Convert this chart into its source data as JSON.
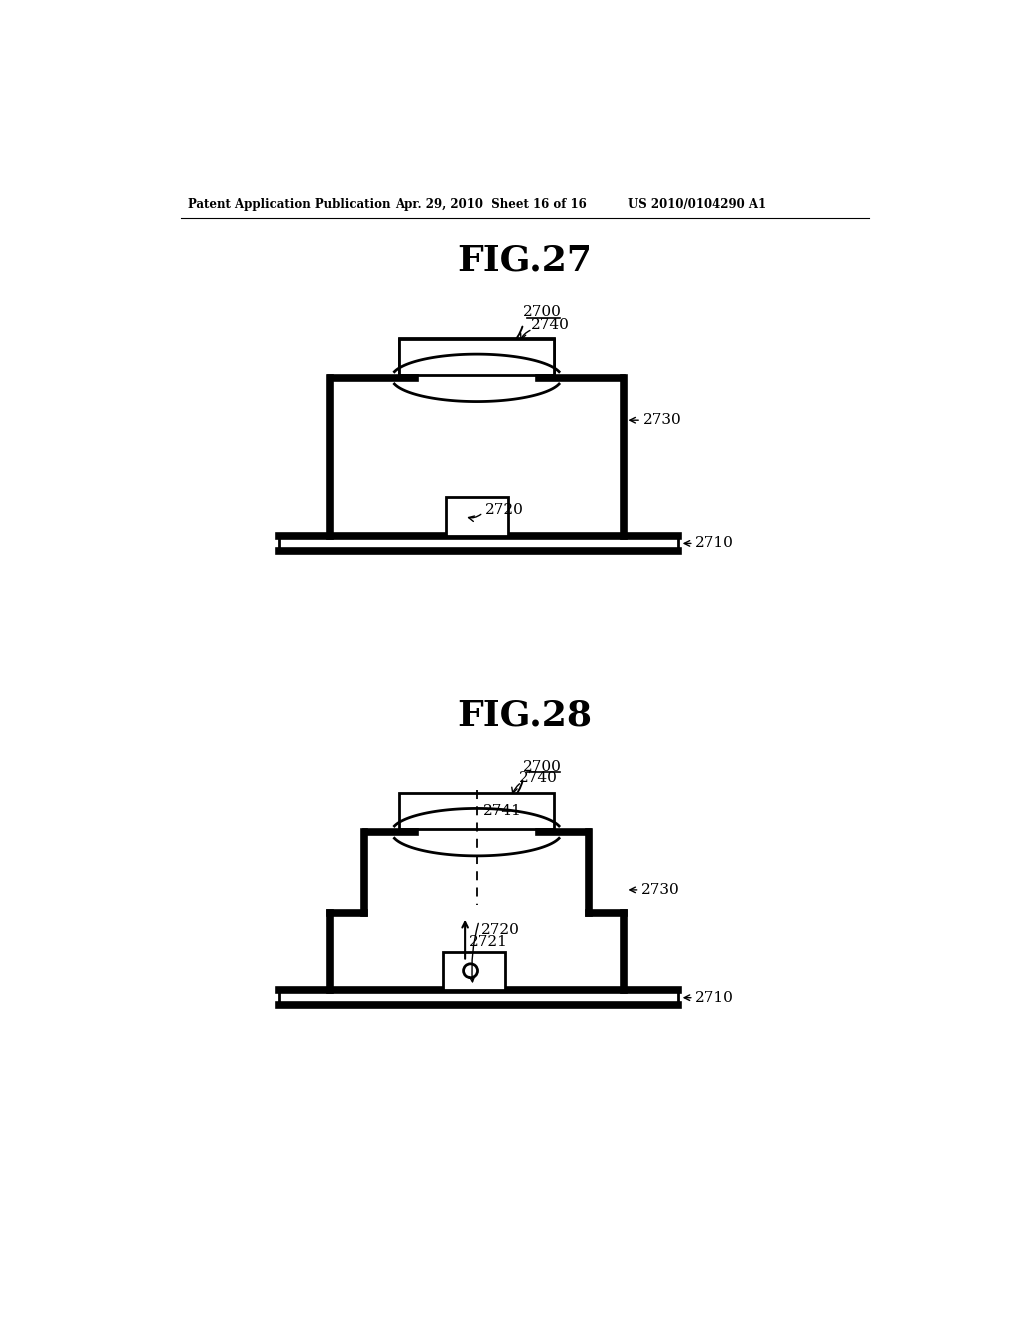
{
  "bg_color": "#ffffff",
  "header_left": "Patent Application Publication",
  "header_mid": "Apr. 29, 2010  Sheet 16 of 16",
  "header_right": "US 2010/0104290 A1",
  "fig27_title": "FIG.27",
  "fig28_title": "FIG.28",
  "lc": "#000000",
  "lw": 2.0,
  "tlw": 5.5
}
